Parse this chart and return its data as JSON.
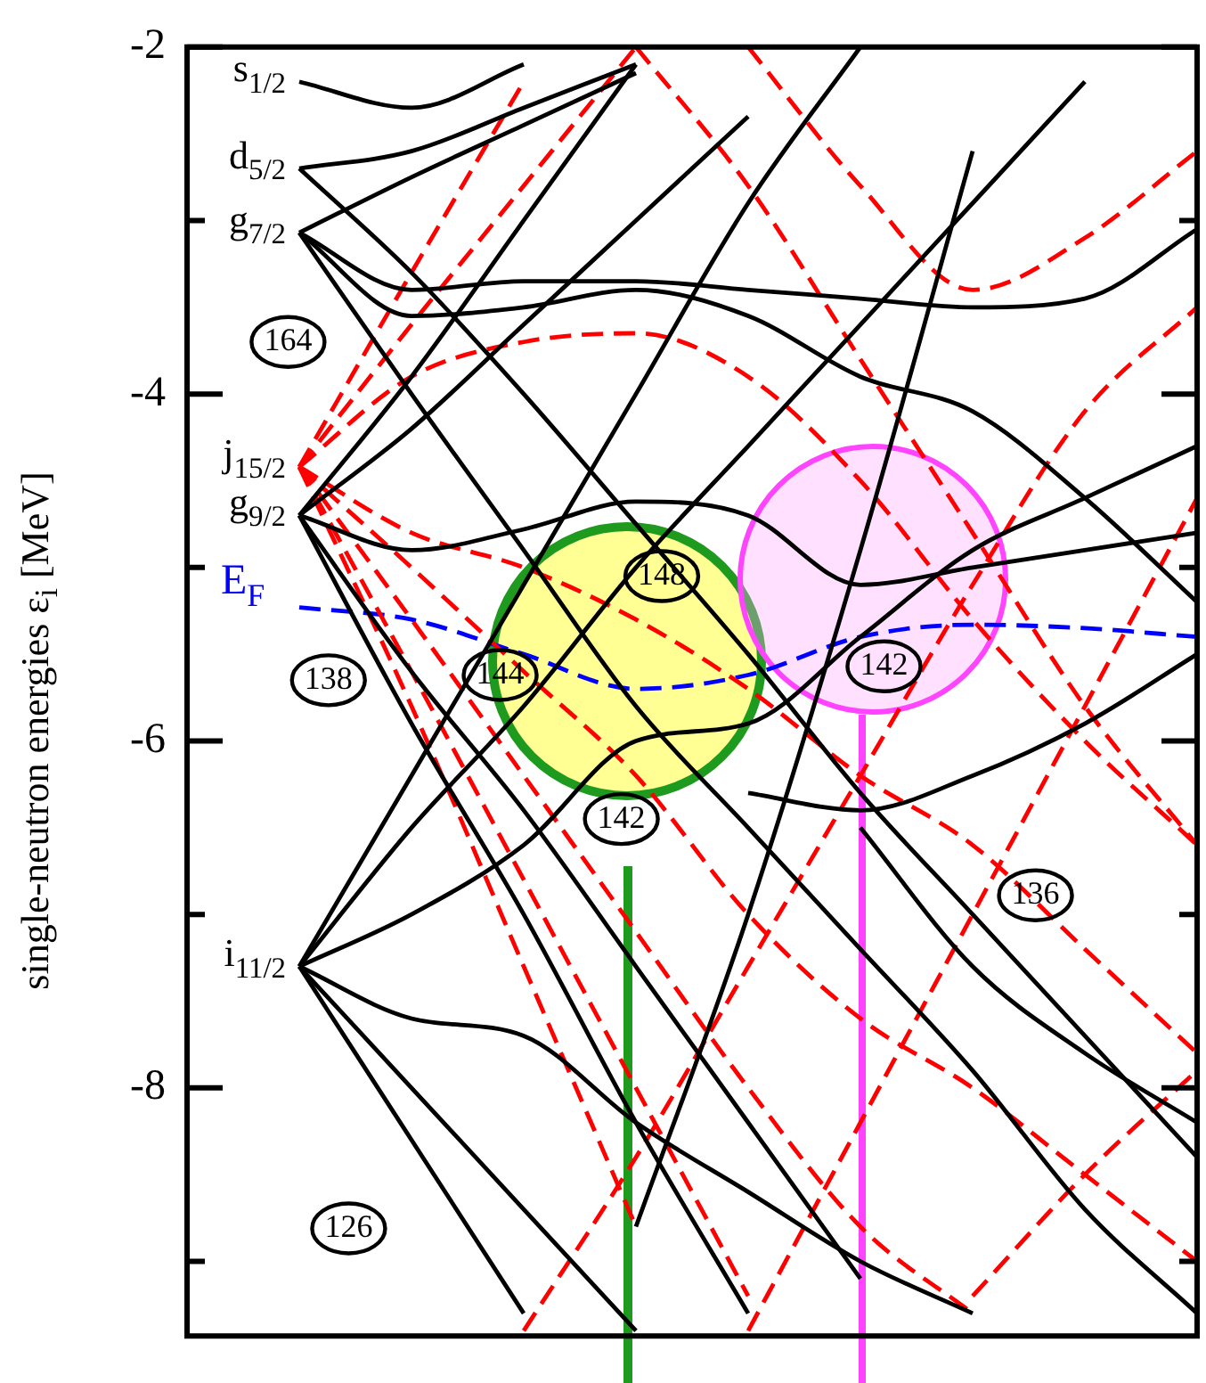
{
  "chart_data": {
    "type": "line",
    "ylabel": "single-neutron energies ε$_{i}$ [MeV]",
    "categories": [
      null,
      null,
      null,
      null,
      null,
      null,
      null,
      null,
      null,
      null
    ],
    "ylim": [
      -9.43,
      -2
    ],
    "yticks": [
      -2,
      {
        "value": -3,
        "label": null
      },
      -4,
      {
        "value": -5,
        "label": null
      },
      -6,
      {
        "value": -7,
        "label": null
      },
      -8,
      {
        "value": -9,
        "label": null
      }
    ],
    "grid": false,
    "legend": false,
    "tick_labels": "y",
    "series": [
      {
        "color": "#000000",
        "line_style": "solid",
        "values": [
          null,
          -4.7,
          -5.9,
          -7.0,
          -8.2,
          -9.3,
          null,
          null,
          null,
          null
        ]
      },
      {
        "color": "#000000",
        "line_style": "solid",
        "values": [
          null,
          -4.7,
          -5.6,
          -6.4,
          -7.3,
          -8.2,
          -9.1,
          null,
          null,
          null
        ]
      },
      {
        "color": "#000000",
        "line_style": "solid",
        "values": [
          null,
          -4.7,
          -4.9,
          -4.78,
          -4.62,
          -4.7,
          -5.1,
          -5.0,
          -4.9,
          -4.8
        ]
      },
      {
        "color": "#000000",
        "line_style": "solid",
        "values": [
          null,
          -4.7,
          -3.9,
          -3.0,
          -2.1,
          null,
          null,
          null,
          null,
          null
        ]
      },
      {
        "color": "#000000",
        "line_style": "solid",
        "values": [
          null,
          -4.7,
          -4.2,
          -3.6,
          -3.0,
          -2.4,
          null,
          null,
          null,
          null
        ]
      },
      {
        "color": "#000000",
        "line_style": "solid",
        "values": [
          null,
          -3.07,
          -3.4,
          -3.35,
          -3.35,
          -3.4,
          -3.45,
          -3.5,
          -3.45,
          -3.05
        ]
      },
      {
        "color": "#000000",
        "line_style": "solid",
        "values": [
          null,
          -3.07,
          -3.55,
          -3.5,
          -3.4,
          -3.55,
          -3.9,
          -4.1,
          -4.6,
          -5.2
        ]
      },
      {
        "color": "#000000",
        "line_style": "solid",
        "values": [
          null,
          -3.07,
          -4.0,
          -4.9,
          -5.8,
          -6.5,
          -7.2,
          -7.9,
          -8.7,
          -9.3
        ]
      },
      {
        "color": "#000000",
        "line_style": "solid",
        "values": [
          null,
          -3.07,
          -2.75,
          -2.45,
          -2.15,
          null,
          null,
          null,
          null,
          null
        ]
      },
      {
        "color": "#000000",
        "line_style": "solid",
        "values": [
          null,
          -2.7,
          -2.6,
          -2.35,
          -2.1,
          null,
          null,
          null,
          null,
          null
        ]
      },
      {
        "color": "#000000",
        "line_style": "solid",
        "values": [
          null,
          -2.7,
          -3.3,
          -4.0,
          -4.75,
          -5.5,
          -6.3,
          -7.0,
          -7.7,
          -8.4
        ]
      },
      {
        "color": "#000000",
        "line_style": "solid",
        "values": [
          null,
          -2.2,
          -2.35,
          -2.1,
          null,
          null,
          null,
          null,
          null,
          null
        ]
      },
      {
        "color": "#000000",
        "line_style": "solid",
        "values": [
          null,
          -7.3,
          -6.2,
          -5.1,
          -4.0,
          -2.9,
          -2.0,
          null,
          null,
          null
        ]
      },
      {
        "color": "#000000",
        "line_style": "solid",
        "values": [
          null,
          -7.3,
          -6.5,
          -5.8,
          -5.0,
          -4.3,
          -3.6,
          -2.9,
          -2.2,
          null
        ]
      },
      {
        "color": "#000000",
        "line_style": "solid",
        "values": [
          null,
          -7.3,
          -7.0,
          -6.6,
          -6.0,
          -5.9,
          -5.4,
          -4.9,
          -4.6,
          -4.3
        ]
      },
      {
        "color": "#000000",
        "line_style": "solid",
        "values": [
          null,
          -7.3,
          -7.6,
          -7.7,
          -8.2,
          -8.6,
          -9.0,
          -9.3,
          null,
          null
        ]
      },
      {
        "color": "#000000",
        "line_style": "solid",
        "values": [
          null,
          -7.3,
          -8.0,
          -8.7,
          -9.4,
          null,
          null,
          null,
          null,
          null
        ]
      },
      {
        "color": "#000000",
        "line_style": "solid",
        "values": [
          null,
          -7.3,
          -8.3,
          -9.3,
          null,
          null,
          null,
          null,
          null,
          null
        ]
      },
      {
        "color": "#000000",
        "line_style": "solid",
        "values": [
          null,
          null,
          null,
          null,
          -8.8,
          -7.0,
          -4.9,
          -2.6,
          null,
          null
        ]
      },
      {
        "color": "#000000",
        "line_style": "solid",
        "values": [
          null,
          null,
          null,
          null,
          null,
          null,
          -6.5,
          -7.3,
          -7.8,
          -8.2
        ]
      },
      {
        "color": "#000000",
        "line_style": "solid",
        "values": [
          null,
          null,
          null,
          null,
          null,
          -6.3,
          -6.4,
          -6.2,
          -5.9,
          -5.5
        ]
      },
      {
        "color": "#ff0000",
        "line_style": "dashed",
        "values": [
          null,
          -4.42,
          -3.3,
          -2.2,
          null,
          null,
          null,
          null,
          null,
          null
        ]
      },
      {
        "color": "#ff0000",
        "line_style": "dashed",
        "values": [
          null,
          -4.42,
          -3.6,
          -2.8,
          -2.0,
          null,
          null,
          null,
          null,
          null
        ]
      },
      {
        "color": "#ff0000",
        "line_style": "dashed",
        "values": [
          null,
          -4.42,
          -3.9,
          -3.7,
          -3.65,
          -3.9,
          -4.5,
          -5.3,
          -6.0,
          -6.6
        ]
      },
      {
        "color": "#ff0000",
        "line_style": "dashed",
        "values": [
          null,
          -4.42,
          -4.8,
          -5.0,
          -5.3,
          -5.7,
          -6.2,
          -6.6,
          -7.2,
          -7.8
        ]
      },
      {
        "color": "#ff0000",
        "line_style": "dashed",
        "values": [
          null,
          -4.42,
          -5.3,
          -6.2,
          -7.1,
          -8.0,
          -8.8,
          -9.3,
          null,
          null
        ]
      },
      {
        "color": "#ff0000",
        "line_style": "dashed",
        "values": [
          null,
          -4.42,
          -5.6,
          -6.8,
          -8.0,
          -9.2,
          null,
          null,
          null,
          null
        ]
      },
      {
        "color": "#ff0000",
        "line_style": "dashed",
        "values": [
          null,
          -4.42,
          -5.8,
          -7.3,
          -8.8,
          null,
          null,
          null,
          null,
          null
        ]
      },
      {
        "color": "#ff0000",
        "line_style": "dashed",
        "values": [
          null,
          -4.42,
          -5.0,
          -5.6,
          -6.2,
          -7.0,
          -7.6,
          -8.0,
          -8.5,
          -9.0
        ]
      },
      {
        "color": "#ff0000",
        "line_style": "dashed",
        "values": [
          null,
          null,
          null,
          null,
          -2.0,
          -2.8,
          -3.8,
          -4.8,
          -5.8,
          -6.6
        ]
      },
      {
        "color": "#ff0000",
        "line_style": "dashed",
        "values": [
          null,
          null,
          null,
          null,
          null,
          -2.0,
          -2.8,
          -3.4,
          -3.1,
          -2.6
        ]
      },
      {
        "color": "#ff0000",
        "line_style": "dashed",
        "values": [
          null,
          null,
          null,
          -9.4,
          -8.4,
          -7.3,
          -6.2,
          -5.1,
          -4.1,
          -3.5
        ]
      },
      {
        "color": "#ff0000",
        "line_style": "dashed",
        "values": [
          null,
          null,
          null,
          null,
          null,
          -9.4,
          -8.2,
          -7.0,
          -5.8,
          -4.6
        ]
      },
      {
        "color": "#ff0000",
        "line_style": "dashed",
        "values": [
          null,
          null,
          null,
          null,
          null,
          null,
          null,
          -9.2,
          -8.5,
          -7.9
        ]
      },
      {
        "name": "E$_{F}$",
        "color": "#0000ff",
        "line_style": "dashed",
        "values": [
          null,
          -5.23,
          -5.3,
          -5.5,
          -5.7,
          -5.62,
          -5.4,
          -5.33,
          -5.35,
          -5.4
        ]
      }
    ],
    "annotations": [
      "s$_{1/2}$",
      "d$_{5/2}$",
      "g$_{7/2}$",
      "j$_{15/2}$",
      "g$_{9/2}$",
      "i$_{11/2}$",
      {
        "text": "164",
        "y": -3.7
      },
      {
        "text": "138",
        "y": -5.65
      },
      {
        "text": "126",
        "y": -8.81
      },
      {
        "text": "148",
        "y": -5.05
      },
      {
        "text": "144",
        "y": -5.62
      },
      {
        "text": "142",
        "y": -6.45
      },
      {
        "text": "142",
        "y": -5.57
      },
      {
        "text": "136",
        "y": -6.89
      }
    ]
  }
}
